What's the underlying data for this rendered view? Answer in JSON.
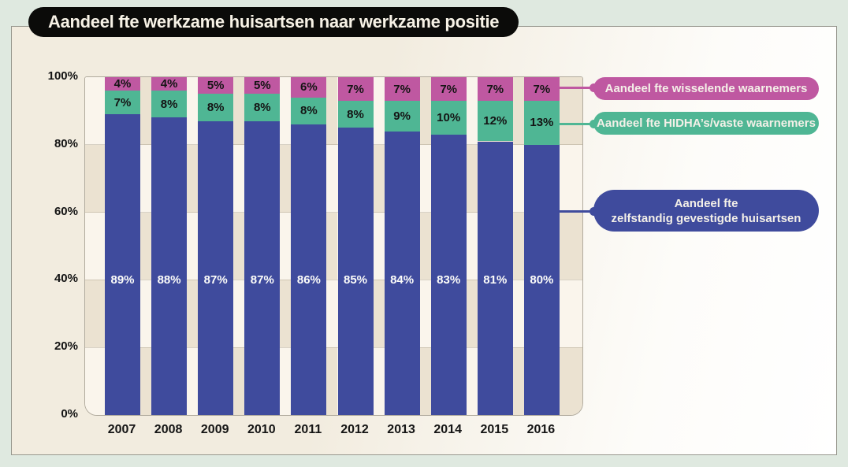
{
  "title": "Aandeel fte werkzame huisartsen naar werkzame positie",
  "chart_data": {
    "type": "bar",
    "stacked": true,
    "title": "Aandeel fte werkzame huisartsen naar werkzame positie",
    "categories": [
      "2007",
      "2008",
      "2009",
      "2010",
      "2011",
      "2012",
      "2013",
      "2014",
      "2015",
      "2016"
    ],
    "series": [
      {
        "name": "Aandeel fte zelfstandig gevestigde huisartsen",
        "color": "#3f4b9d",
        "label_color": "#fdfdfa",
        "values": [
          89,
          88,
          87,
          87,
          86,
          85,
          84,
          83,
          81,
          80
        ]
      },
      {
        "name": "Aandeel fte HIDHA’s/vaste waarnemers",
        "color": "#4fb694",
        "label_color": "#141414",
        "values": [
          7,
          8,
          8,
          8,
          8,
          8,
          9,
          10,
          12,
          13
        ]
      },
      {
        "name": "Aandeel fte wisselende waarnemers",
        "color": "#bf58a1",
        "label_color": "#141414",
        "values": [
          4,
          4,
          5,
          5,
          6,
          7,
          7,
          7,
          7,
          7
        ]
      }
    ],
    "value_suffix": "%",
    "y_ticks": [
      "100%",
      "80%",
      "60%",
      "40%",
      "20%",
      "0%"
    ],
    "ylim": [
      0,
      100
    ],
    "grid": "checkerboard",
    "legend_position": "right"
  },
  "legend": {
    "items": [
      {
        "label": "Aandeel fte wisselende waarnemers",
        "color": "#bf58a1"
      },
      {
        "label": "Aandeel fte HIDHA’s/vaste waarnemers",
        "color": "#4fb694"
      },
      {
        "label_line1": "Aandeel fte",
        "label_line2": "zelfstandig gevestigde huisartsen",
        "color": "#3f4b9d"
      }
    ]
  },
  "colors": {
    "page_background": "#dfe9e0",
    "panel_cream": "#f2ecdf",
    "panel_white": "#ffffff",
    "plot_cell_light": "#faf5ec",
    "plot_cell_tan": "#ebe2d1",
    "title_background": "#0b0b09",
    "title_text": "#f7f2e6",
    "axis_text": "#141414"
  }
}
